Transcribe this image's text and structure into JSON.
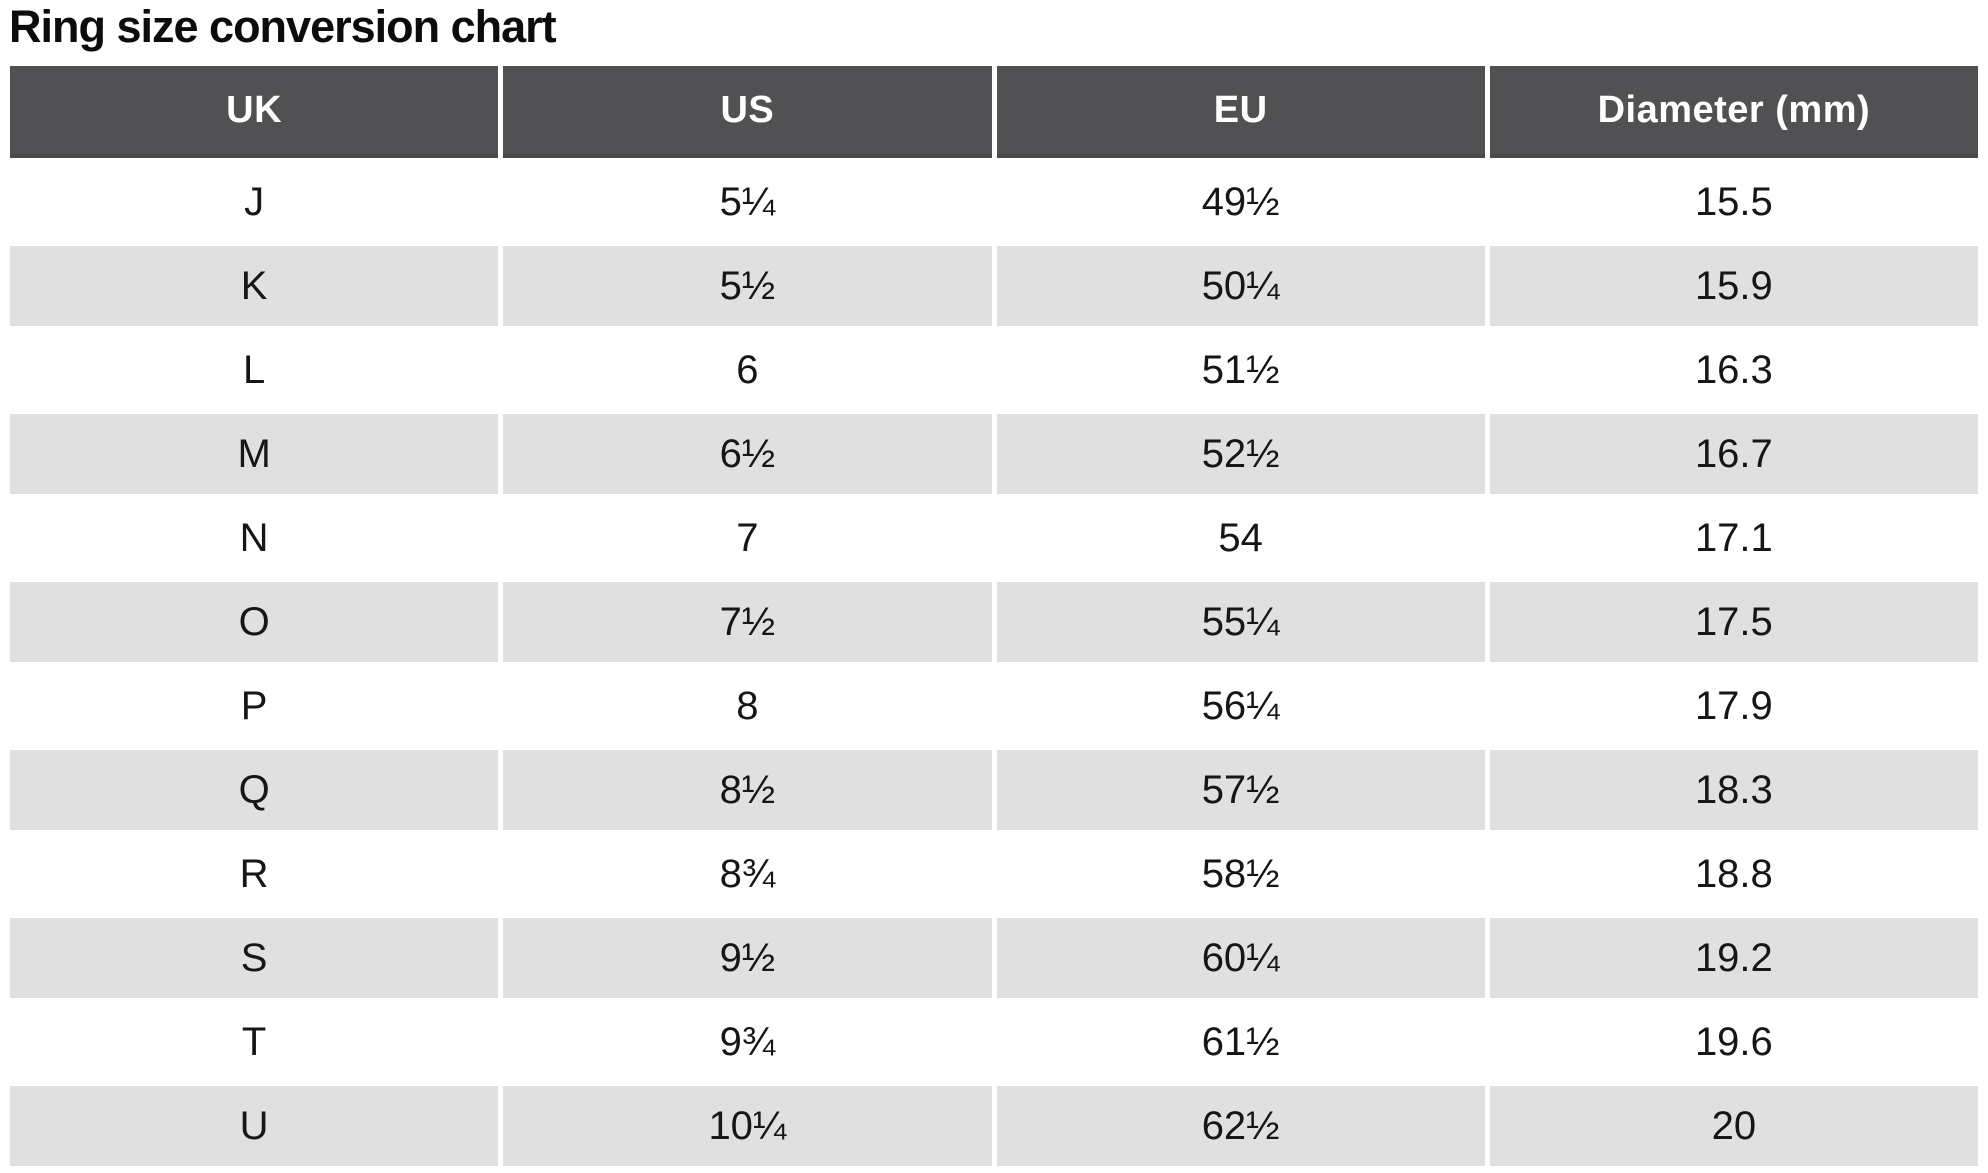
{
  "page_title": "Ring size conversion chart",
  "chart_data": {
    "type": "table",
    "title": "Ring size conversion chart",
    "columns": [
      "UK",
      "US",
      "EU",
      "Diameter (mm)"
    ],
    "rows": [
      [
        "J",
        "5¼",
        "49½",
        "15.5"
      ],
      [
        "K",
        "5½",
        "50¼",
        "15.9"
      ],
      [
        "L",
        "6",
        "51½",
        "16.3"
      ],
      [
        "M",
        "6½",
        "52½",
        "16.7"
      ],
      [
        "N",
        "7",
        "54",
        "17.1"
      ],
      [
        "O",
        "7½",
        "55¼",
        "17.5"
      ],
      [
        "P",
        "8",
        "56¼",
        "17.9"
      ],
      [
        "Q",
        "8½",
        "57½",
        "18.3"
      ],
      [
        "R",
        "8¾",
        "58½",
        "18.8"
      ],
      [
        "S",
        "9½",
        "60¼",
        "19.2"
      ],
      [
        "T",
        "9¾",
        "61½",
        "19.6"
      ],
      [
        "U",
        "10¼",
        "62½",
        "20"
      ]
    ]
  },
  "colors": {
    "header_bg": "#515153",
    "header_border": "#48484b",
    "header_text": "#ffffff",
    "row_alt_bg": "#e0e0e1",
    "row_bg": "#ffffff",
    "text": "#161616",
    "title": "#0c0c0c"
  }
}
